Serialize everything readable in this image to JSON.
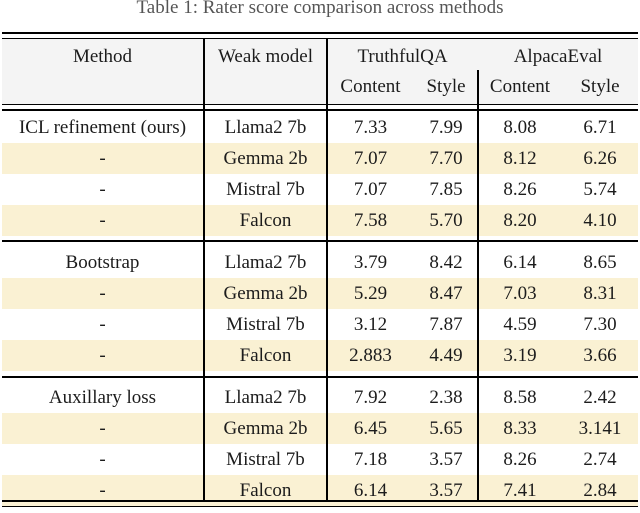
{
  "caption": "Table 1: Rater score comparison across methods",
  "colors": {
    "highlight_row": "#faf1d3",
    "header_bg": "#f4f4f4",
    "rule": "#000000",
    "text": "#1c1c1c"
  },
  "table": {
    "headers": {
      "method": "Method",
      "weak_model": "Weak model",
      "group1": "TruthfulQA",
      "group2": "AlpacaEval",
      "subcols": [
        "Content",
        "Style",
        "Content",
        "Style"
      ]
    },
    "blocks": [
      {
        "rows": [
          {
            "method": "ICL refinement (ours)",
            "weak_model": "Llama2 7b",
            "values": [
              "7.33",
              "7.99",
              "8.08",
              "6.71"
            ]
          },
          {
            "method": "-",
            "weak_model": "Gemma 2b",
            "values": [
              "7.07",
              "7.70",
              "8.12",
              "6.26"
            ]
          },
          {
            "method": "-",
            "weak_model": "Mistral 7b",
            "values": [
              "7.07",
              "7.85",
              "8.26",
              "5.74"
            ]
          },
          {
            "method": "-",
            "weak_model": "Falcon",
            "values": [
              "7.58",
              "5.70",
              "8.20",
              "4.10"
            ]
          }
        ]
      },
      {
        "rows": [
          {
            "method": "Bootstrap",
            "weak_model": "Llama2 7b",
            "values": [
              "3.79",
              "8.42",
              "6.14",
              "8.65"
            ]
          },
          {
            "method": "-",
            "weak_model": "Gemma 2b",
            "values": [
              "5.29",
              "8.47",
              "7.03",
              "8.31"
            ]
          },
          {
            "method": "-",
            "weak_model": "Mistral 7b",
            "values": [
              "3.12",
              "7.87",
              "4.59",
              "7.30"
            ]
          },
          {
            "method": "-",
            "weak_model": "Falcon",
            "values": [
              "2.883",
              "4.49",
              "3.19",
              "3.66"
            ]
          }
        ]
      },
      {
        "rows": [
          {
            "method": "Auxillary loss",
            "weak_model": "Llama2 7b",
            "values": [
              "7.92",
              "2.38",
              "8.58",
              "2.42"
            ]
          },
          {
            "method": "-",
            "weak_model": "Gemma 2b",
            "values": [
              "6.45",
              "5.65",
              "8.33",
              "3.141"
            ]
          },
          {
            "method": "-",
            "weak_model": "Mistral 7b",
            "values": [
              "7.18",
              "3.57",
              "8.26",
              "2.74"
            ]
          },
          {
            "method": "-",
            "weak_model": "Falcon",
            "values": [
              "6.14",
              "3.57",
              "7.41",
              "2.84"
            ]
          }
        ]
      }
    ]
  }
}
